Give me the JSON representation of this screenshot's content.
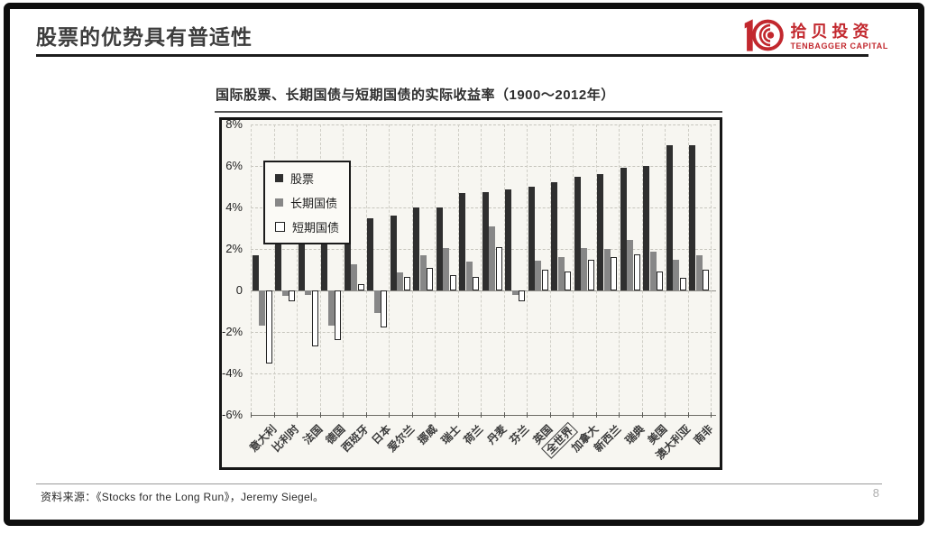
{
  "header": {
    "title": "股票的优势具有普适性"
  },
  "logo": {
    "name_cn": "拾贝投资",
    "name_en": "TENBAGGER CAPITAL",
    "color": "#c2282e"
  },
  "chart": {
    "title": "国际股票、长期国债与短期国债的实际收益率（1900～2012年）"
  },
  "chart_data": {
    "type": "bar",
    "title": "国际股票、长期国债与短期国债的实际收益率（1900～2012年）",
    "categories": [
      "意大利",
      "比利时",
      "法国",
      "德国",
      "西班牙",
      "日本",
      "爱尔兰",
      "挪威",
      "瑞士",
      "荷兰",
      "丹麦",
      "芬兰",
      "英国",
      "全世界",
      "加拿大",
      "新西兰",
      "瑞典",
      "美国",
      "澳大利亚",
      "南非"
    ],
    "series": [
      {
        "name": "股票",
        "color": "#2f2f2f",
        "values": [
          1.7,
          2.4,
          2.9,
          2.9,
          3.3,
          3.5,
          3.6,
          4.0,
          4.0,
          4.7,
          4.75,
          4.85,
          5.0,
          5.2,
          5.5,
          5.6,
          5.9,
          6.0,
          7.0,
          7.0
        ]
      },
      {
        "name": "长期国债",
        "color": "#878787",
        "values": [
          -1.7,
          -0.25,
          -0.2,
          -1.7,
          1.25,
          -1.1,
          0.85,
          1.7,
          2.05,
          1.4,
          3.1,
          -0.2,
          1.45,
          1.6,
          2.05,
          2.0,
          2.45,
          1.85,
          1.5,
          1.7
        ]
      },
      {
        "name": "短期国债",
        "color": "#ffffff",
        "values": [
          -3.5,
          -0.5,
          -2.7,
          -2.4,
          0.3,
          -1.8,
          0.65,
          1.1,
          0.75,
          0.65,
          2.1,
          -0.5,
          1.0,
          0.9,
          1.5,
          1.6,
          1.75,
          0.9,
          0.6,
          1.0
        ]
      }
    ],
    "ylim": [
      -6,
      8
    ],
    "ytick_labels": [
      "8%",
      "6%",
      "4%",
      "2%",
      "0",
      "-2%",
      "-4%",
      "-6%"
    ],
    "ytick_values": [
      8,
      6,
      4,
      2,
      0,
      -2,
      -4,
      -6
    ],
    "highlight_category": "全世界",
    "legend_position": "top-left",
    "grid": true
  },
  "footer": {
    "source": "资料来源：《Stocks for the Long Run》，Jeremy Siegel。",
    "page": "8"
  }
}
